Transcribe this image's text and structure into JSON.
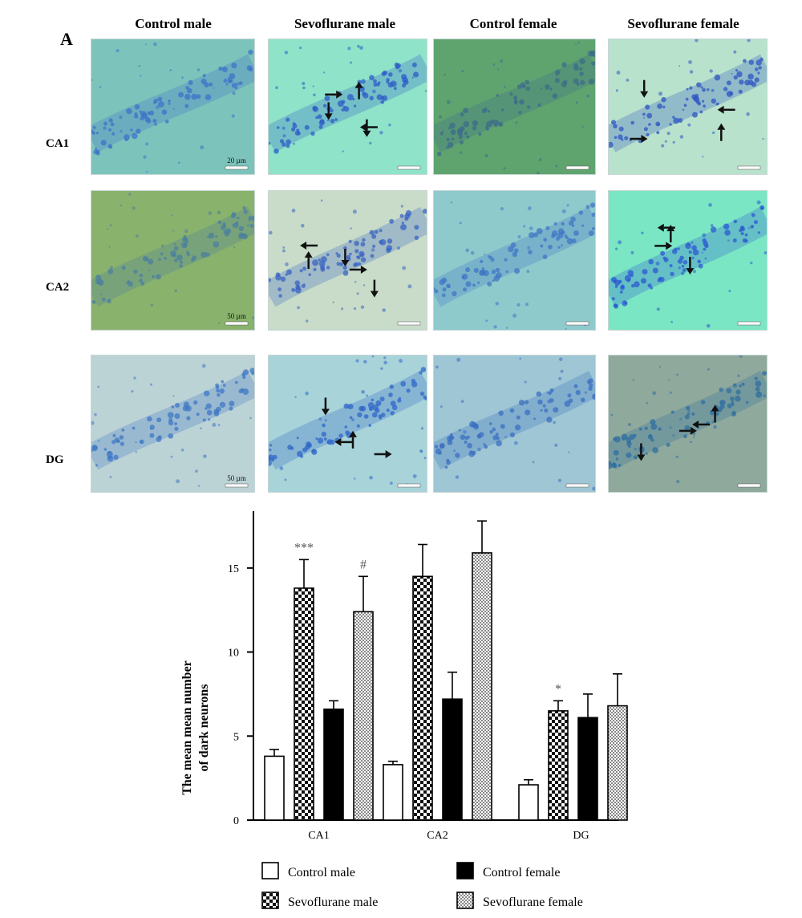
{
  "panel_label": "A",
  "column_headers": [
    "Control male",
    "Sevoflurane male",
    "Control female",
    "Sevoflurane female"
  ],
  "row_headers": [
    "CA1",
    "CA2",
    "DG"
  ],
  "micrograph_tiles": [
    {
      "row": "CA1",
      "col": "Control male",
      "bg": "#7cc4bb",
      "cell": "#3f73c8",
      "arrows": 0,
      "scale_label": "20 µm"
    },
    {
      "row": "CA1",
      "col": "Sevoflurane male",
      "bg": "#8fe3c9",
      "cell": "#2e5cc7",
      "arrows": 5,
      "scale_label": ""
    },
    {
      "row": "CA1",
      "col": "Control female",
      "bg": "#5fa46f",
      "cell": "#3d6c8a",
      "arrows": 0,
      "scale_label": ""
    },
    {
      "row": "CA1",
      "col": "Sevoflurane female",
      "bg": "#b9e2cd",
      "cell": "#2d56c2",
      "arrows": 4,
      "scale_label": ""
    },
    {
      "row": "CA2",
      "col": "Control male",
      "bg": "#89b26c",
      "cell": "#4b7f9f",
      "arrows": 0,
      "scale_label": "50 µm"
    },
    {
      "row": "CA2",
      "col": "Sevoflurane male",
      "bg": "#c8dcc9",
      "cell": "#3a63c3",
      "arrows": 5,
      "scale_label": ""
    },
    {
      "row": "CA2",
      "col": "Control female",
      "bg": "#8ec9cc",
      "cell": "#3f76c4",
      "arrows": 0,
      "scale_label": ""
    },
    {
      "row": "CA2",
      "col": "Sevoflurane female",
      "bg": "#7be6c4",
      "cell": "#2b58d0",
      "arrows": 4,
      "scale_label": ""
    },
    {
      "row": "DG",
      "col": "Control male",
      "bg": "#bcd3d6",
      "cell": "#3f78c4",
      "arrows": 0,
      "scale_label": "50 µm"
    },
    {
      "row": "DG",
      "col": "Sevoflurane male",
      "bg": "#a8d3d9",
      "cell": "#2f67c8",
      "arrows": 4,
      "scale_label": ""
    },
    {
      "row": "DG",
      "col": "Control female",
      "bg": "#9fc6d4",
      "cell": "#3b6fc0",
      "arrows": 0,
      "scale_label": ""
    },
    {
      "row": "DG",
      "col": "Sevoflurane female",
      "bg": "#8fa99c",
      "cell": "#2f6fa0",
      "arrows": 4,
      "scale_label": ""
    }
  ],
  "chart_data": {
    "type": "bar",
    "title": "",
    "ylabel": "The mean mean number of dark neurons",
    "ylabel_lines": [
      "The mean mean number",
      "of dark neurons"
    ],
    "xlabel": "",
    "categories": [
      "CA1",
      "CA2",
      "DG"
    ],
    "ylim": [
      0,
      18
    ],
    "yticks": [
      0,
      5,
      10,
      15
    ],
    "series": [
      {
        "name": "Control male",
        "pattern": "white",
        "values": [
          3.8,
          3.3,
          2.1
        ],
        "errors": [
          0.4,
          0.2,
          0.3
        ]
      },
      {
        "name": "Sevoflurane male",
        "pattern": "checker",
        "values": [
          13.8,
          14.5,
          6.5
        ],
        "errors": [
          1.7,
          1.9,
          0.6
        ]
      },
      {
        "name": "Control female",
        "pattern": "black",
        "values": [
          6.6,
          7.2,
          6.1
        ],
        "errors": [
          0.5,
          1.6,
          1.4
        ]
      },
      {
        "name": "Sevoflurane female",
        "pattern": "dotted",
        "values": [
          12.4,
          15.9,
          6.8
        ],
        "errors": [
          2.1,
          1.9,
          1.9
        ]
      }
    ],
    "annotations": [
      {
        "category": "CA1",
        "series": "Sevoflurane male",
        "text": "***"
      },
      {
        "category": "CA1",
        "series": "Sevoflurane female",
        "text": "#"
      },
      {
        "category": "DG",
        "series": "Sevoflurane male",
        "text": "*"
      }
    ],
    "grid": false,
    "legend_position": "bottom"
  }
}
